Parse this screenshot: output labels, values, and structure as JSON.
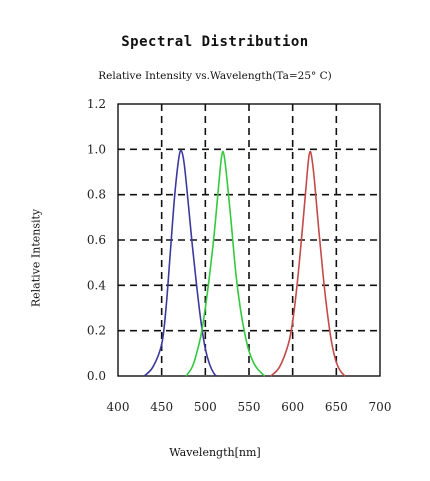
{
  "chart_data": {
    "type": "line",
    "title": "Spectral Distribution",
    "subtitle": "Relative Intensity vs.Wavelength(Ta=25° C)",
    "xlabel": "Wavelength[nm]",
    "ylabel": "Relative Intensity",
    "xlim": [
      400,
      700
    ],
    "ylim": [
      0,
      1.2
    ],
    "x_ticks": [
      "400",
      "450",
      "500",
      "550",
      "600",
      "650",
      "700"
    ],
    "y_ticks": [
      "0.0",
      "0.2",
      "0.4",
      "0.6",
      "0.8",
      "1.0",
      "1.2"
    ],
    "grid": "dashed",
    "series": [
      {
        "color": "#3a3a9e",
        "x": [
          430,
          440,
          450,
          455,
          460,
          465,
          470,
          473,
          476,
          480,
          485,
          490,
          495,
          500,
          505,
          510,
          513
        ],
        "y": [
          0.0,
          0.04,
          0.14,
          0.3,
          0.55,
          0.8,
          0.97,
          0.99,
          0.93,
          0.78,
          0.58,
          0.4,
          0.24,
          0.12,
          0.05,
          0.01,
          0.0
        ]
      },
      {
        "color": "#34c93f",
        "x": [
          478,
          485,
          490,
          495,
          500,
          505,
          510,
          515,
          518,
          520,
          522,
          525,
          530,
          535,
          540,
          545,
          550,
          555,
          560,
          565,
          568
        ],
        "y": [
          0.0,
          0.04,
          0.1,
          0.18,
          0.3,
          0.45,
          0.62,
          0.83,
          0.95,
          0.99,
          0.96,
          0.86,
          0.66,
          0.45,
          0.3,
          0.19,
          0.11,
          0.06,
          0.03,
          0.01,
          0.0
        ]
      },
      {
        "color": "#c44a4a",
        "x": [
          575,
          585,
          595,
          600,
          605,
          610,
          615,
          618,
          620,
          622,
          625,
          630,
          635,
          640,
          645,
          650,
          655,
          660
        ],
        "y": [
          0.0,
          0.04,
          0.14,
          0.24,
          0.4,
          0.6,
          0.82,
          0.95,
          0.99,
          0.96,
          0.86,
          0.64,
          0.44,
          0.27,
          0.14,
          0.06,
          0.02,
          0.0
        ]
      }
    ]
  }
}
